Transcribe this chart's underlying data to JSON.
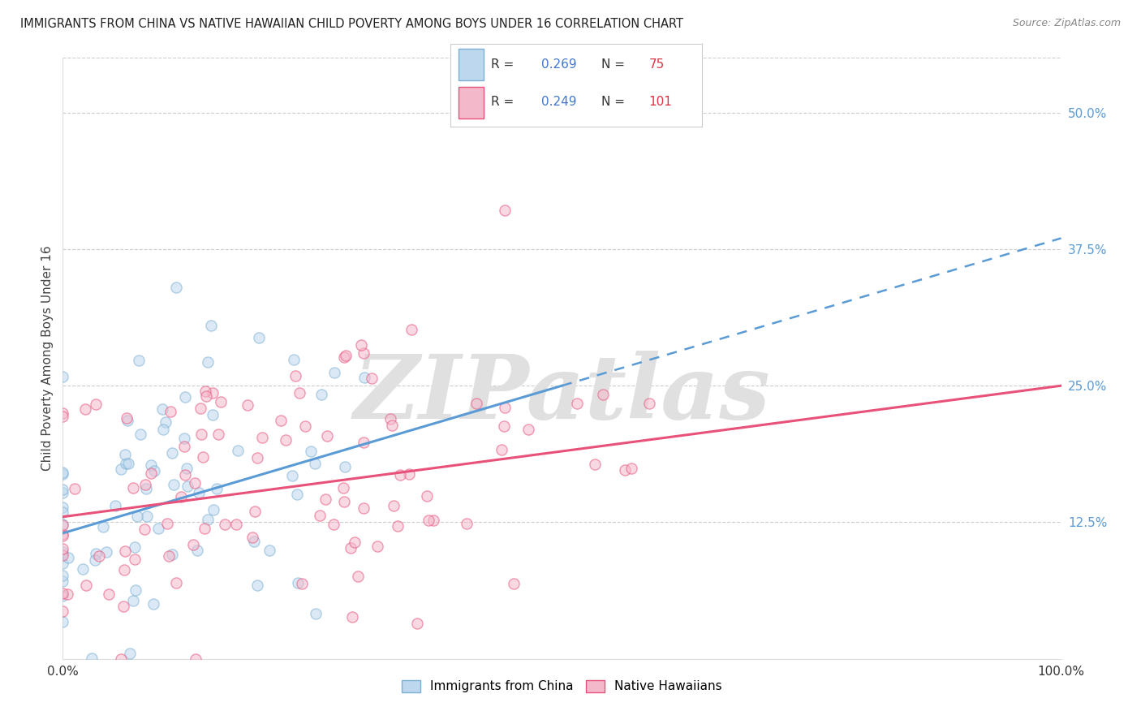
{
  "title": "IMMIGRANTS FROM CHINA VS NATIVE HAWAIIAN CHILD POVERTY AMONG BOYS UNDER 16 CORRELATION CHART",
  "source": "Source: ZipAtlas.com",
  "ylabel": "Child Poverty Among Boys Under 16",
  "xlim": [
    0.0,
    1.0
  ],
  "ylim": [
    0.0,
    0.55
  ],
  "xticks": [
    0.0,
    0.1,
    0.2,
    0.3,
    0.4,
    0.5,
    0.6,
    0.7,
    0.8,
    0.9,
    1.0
  ],
  "xticklabels": [
    "0.0%",
    "",
    "",
    "",
    "",
    "",
    "",
    "",
    "",
    "",
    "100.0%"
  ],
  "yticks": [
    0.0,
    0.125,
    0.25,
    0.375,
    0.5
  ],
  "yticklabels": [
    "",
    "12.5%",
    "25.0%",
    "37.5%",
    "50.0%"
  ],
  "blue_edge": "#7BAFD4",
  "blue_fill": "#BDD7EE",
  "pink_edge": "#E8527A",
  "pink_fill": "#F4B8CB",
  "blue_line_color": "#5B9BD5",
  "pink_line_color": "#E8527A",
  "blue_R": 0.269,
  "blue_N": 75,
  "pink_R": 0.249,
  "pink_N": 101,
  "legend_val_color": "#4477CC",
  "legend_n_color": "#DD3344",
  "tick_color": "#5B9BD5",
  "marker_size": 90,
  "marker_alpha": 0.55,
  "grid_color": "#CCCCCC",
  "bg_color": "#FFFFFF",
  "watermark_text": "ZIPatlas",
  "watermark_color": "#E0E0E0",
  "blue_trend_x_solid_end": 0.5,
  "blue_trend_intercept": 0.115,
  "blue_trend_slope": 0.27,
  "pink_trend_intercept": 0.13,
  "pink_trend_slope": 0.12
}
